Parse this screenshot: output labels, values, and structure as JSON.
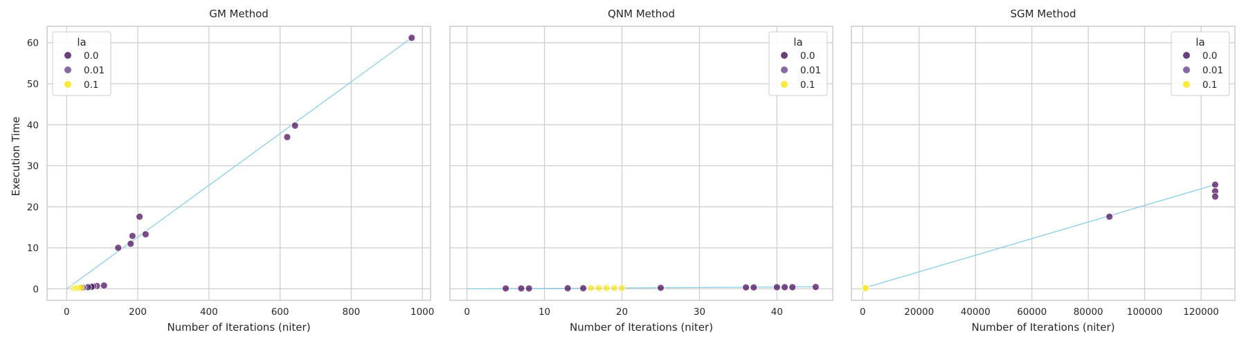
{
  "figure": {
    "ylabel": "Execution Time",
    "xlabel": "Number of Iterations (niter)"
  },
  "chart_data": [
    {
      "type": "scatter",
      "title": "GM Method",
      "xlabel": "Number of Iterations (niter)",
      "ylabel": "Execution Time",
      "xlim": [
        -55,
        1023
      ],
      "ylim": [
        -2.8,
        64.0
      ],
      "xticks": [
        0,
        200,
        400,
        600,
        800,
        1000
      ],
      "xtick_labels": [
        "0",
        "200",
        "400",
        "600",
        "800",
        "1000"
      ],
      "yticks": [
        0,
        10,
        20,
        30,
        40,
        50,
        60
      ],
      "ytick_labels": [
        "0",
        "10",
        "20",
        "30",
        "40",
        "50",
        "60"
      ],
      "grid": true,
      "legend": {
        "title": "la",
        "placement": "top-left",
        "entries": [
          "0.0",
          "0.01",
          "0.1"
        ]
      },
      "fit_line": {
        "x": [
          0,
          970
        ],
        "y": [
          0,
          61.2
        ]
      },
      "series": [
        {
          "name": "0.0",
          "points": [
            [
              970,
              61.2
            ],
            [
              642,
              39.8
            ],
            [
              620,
              37.0
            ],
            [
              205,
              17.6
            ],
            [
              222,
              13.3
            ],
            [
              185,
              12.9
            ],
            [
              180,
              11.0
            ],
            [
              145,
              10.0
            ],
            [
              105,
              0.8
            ],
            [
              85,
              0.7
            ],
            [
              75,
              0.6
            ]
          ]
        },
        {
          "name": "0.01",
          "points": [
            [
              70,
              0.5
            ],
            [
              60,
              0.4
            ],
            [
              45,
              0.3
            ]
          ]
        },
        {
          "name": "0.1",
          "points": [
            [
              20,
              0.2
            ],
            [
              27,
              0.2
            ],
            [
              33,
              0.2
            ],
            [
              40,
              0.3
            ]
          ]
        }
      ]
    },
    {
      "type": "scatter",
      "title": "QNM Method",
      "xlabel": "Number of Iterations (niter)",
      "ylabel": "",
      "xlim": [
        -2.2,
        47.2
      ],
      "ylim": [
        -2.8,
        64.0
      ],
      "xticks": [
        0,
        10,
        20,
        30,
        40
      ],
      "xtick_labels": [
        "0",
        "10",
        "20",
        "30",
        "40"
      ],
      "yticks": [
        0,
        10,
        20,
        30,
        40,
        50,
        60
      ],
      "ytick_labels": [
        "",
        "",
        "",
        "",
        "",
        "",
        ""
      ],
      "grid": true,
      "legend": {
        "title": "la",
        "placement": "top-right",
        "entries": [
          "0.0",
          "0.01",
          "0.1"
        ]
      },
      "fit_line": {
        "x": [
          0,
          45
        ],
        "y": [
          0,
          0.5
        ]
      },
      "series": [
        {
          "name": "0.0",
          "points": [
            [
              5,
              0.1
            ],
            [
              7,
              0.1
            ],
            [
              8,
              0.1
            ],
            [
              13,
              0.15
            ],
            [
              15,
              0.15
            ],
            [
              25,
              0.25
            ],
            [
              36,
              0.35
            ],
            [
              37,
              0.35
            ],
            [
              40,
              0.4
            ],
            [
              41,
              0.4
            ],
            [
              42,
              0.4
            ],
            [
              45,
              0.45
            ]
          ]
        },
        {
          "name": "0.01",
          "points": []
        },
        {
          "name": "0.1",
          "points": [
            [
              16,
              0.2
            ],
            [
              17,
              0.2
            ],
            [
              18,
              0.2
            ],
            [
              19,
              0.2
            ],
            [
              20,
              0.2
            ]
          ]
        }
      ]
    },
    {
      "type": "scatter",
      "title": "SGM Method",
      "xlabel": "Number of Iterations (niter)",
      "ylabel": "",
      "xlim": [
        -4000,
        132000
      ],
      "ylim": [
        -2.8,
        64.0
      ],
      "xticks": [
        0,
        20000,
        40000,
        60000,
        80000,
        100000,
        120000
      ],
      "xtick_labels": [
        "0",
        "20000",
        "40000",
        "60000",
        "80000",
        "100000",
        "120000"
      ],
      "yticks": [
        0,
        10,
        20,
        30,
        40,
        50,
        60
      ],
      "ytick_labels": [
        "",
        "",
        "",
        "",
        "",
        "",
        ""
      ],
      "grid": true,
      "legend": {
        "title": "la",
        "placement": "top-right",
        "entries": [
          "0.0",
          "0.01",
          "0.1"
        ]
      },
      "fit_line": {
        "x": [
          1000,
          125000
        ],
        "y": [
          0.3,
          25.4
        ]
      },
      "series": [
        {
          "name": "0.0",
          "points": [
            [
              87500,
              17.6
            ],
            [
              125000,
              25.4
            ],
            [
              125000,
              23.8
            ],
            [
              125000,
              22.5
            ]
          ]
        },
        {
          "name": "0.01",
          "points": []
        },
        {
          "name": "0.1",
          "points": [
            [
              1000,
              0.1
            ],
            [
              1000,
              0.2
            ]
          ]
        }
      ]
    }
  ],
  "colors": {
    "0.0": "#440154",
    "0.01": "#3b1f5e",
    "0.1": "#fde725",
    "legend_0.0": "#5a2a6e",
    "legend_0.01": "#7a5a9a",
    "legend_0.1": "#fde725",
    "fit_line": "#87ceeb",
    "grid": "#cccccc",
    "frame": "#cccccc"
  }
}
